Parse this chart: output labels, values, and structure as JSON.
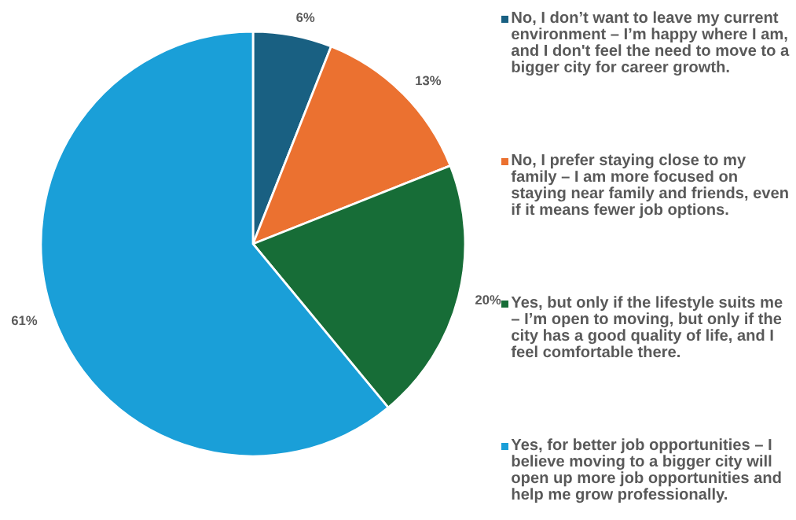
{
  "chart_data": {
    "type": "pie",
    "categories": [
      "No, I don’t want to leave my current environment – I’m happy where I am, and I don't feel the need to move to a bigger city for career growth.",
      "No, I prefer staying close to my family – I am more focused on staying near family and friends, even if it means fewer job options.",
      "Yes, but only if the lifestyle suits me – I’m open to moving, but only if the city has a good quality of life, and I feel comfortable there.",
      "Yes, for better job opportunities – I believe moving to a bigger city will open up more job opportunities and help me grow professionally."
    ],
    "values": [
      6,
      13,
      20,
      61
    ],
    "colors": [
      "#196082",
      "#eb7130",
      "#176d37",
      "#1a9fd8"
    ],
    "value_labels": [
      "6%",
      "13%",
      "20%",
      "61%"
    ],
    "legend": "right"
  }
}
